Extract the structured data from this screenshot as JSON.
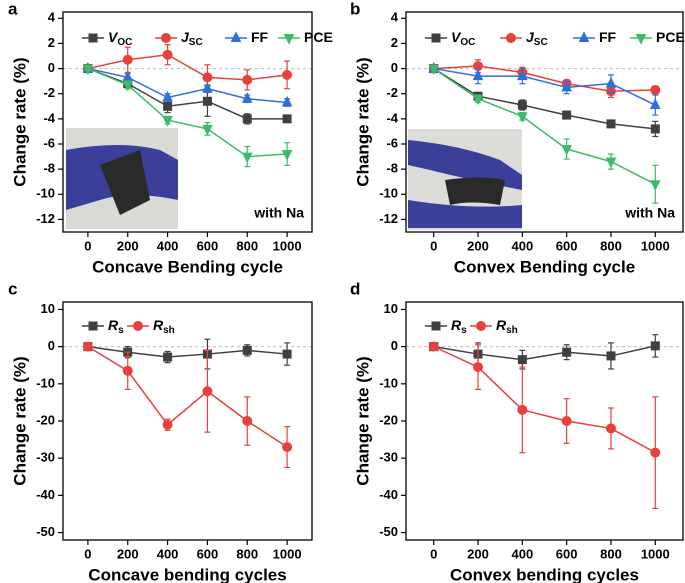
{
  "chart_data": [
    {
      "type": "line",
      "label": "a",
      "annotation": "with Na",
      "xlabel": "Concave Bending cycle",
      "ylabel": "Change rate (%)",
      "x": [
        0,
        200,
        400,
        600,
        800,
        1000
      ],
      "xlim": [
        -125,
        1125
      ],
      "xticks": [
        0,
        200,
        400,
        600,
        800,
        1000
      ],
      "ylim": [
        -13,
        4.5
      ],
      "yticks": [
        4,
        2,
        0,
        -2,
        -4,
        -6,
        -8,
        -10,
        -12
      ],
      "series": [
        {
          "name": "V",
          "sub": "OC",
          "color": "#404040",
          "marker": "square",
          "values": [
            0,
            -1.2,
            -3.0,
            -2.6,
            -4.0,
            -4.0
          ],
          "errors": [
            0,
            0.3,
            0.5,
            1.2,
            0.4,
            0.1
          ]
        },
        {
          "name": "J",
          "sub": "SC",
          "color": "#e8403a",
          "marker": "circle",
          "values": [
            0,
            0.7,
            1.1,
            -0.7,
            -0.9,
            -0.5
          ],
          "errors": [
            0,
            1.0,
            0.8,
            1.0,
            0.8,
            1.1
          ]
        },
        {
          "name": "FF",
          "color": "#2e6fd8",
          "marker": "triangle-up",
          "values": [
            0,
            -0.7,
            -2.3,
            -1.6,
            -2.4,
            -2.7
          ],
          "errors": [
            0,
            0.3,
            0.3,
            0.3,
            0.3,
            0.3
          ]
        },
        {
          "name": "PCE",
          "color": "#3dbb6a",
          "marker": "triangle-down",
          "values": [
            0,
            -1.3,
            -4.1,
            -4.8,
            -7.0,
            -6.8
          ],
          "errors": [
            0,
            0.3,
            0.3,
            0.5,
            0.8,
            0.9
          ]
        }
      ]
    },
    {
      "type": "line",
      "label": "b",
      "annotation": "with Na",
      "xlabel": "Convex Bending cycle",
      "ylabel": "Change rate (%)",
      "x": [
        0,
        200,
        400,
        600,
        800,
        1000
      ],
      "xlim": [
        -125,
        1125
      ],
      "xticks": [
        0,
        200,
        400,
        600,
        800,
        1000
      ],
      "ylim": [
        -13,
        4.5
      ],
      "yticks": [
        4,
        2,
        0,
        -2,
        -4,
        -6,
        -8,
        -10,
        -12
      ],
      "series": [
        {
          "name": "V",
          "sub": "OC",
          "color": "#404040",
          "marker": "square",
          "values": [
            0,
            -2.2,
            -2.9,
            -3.7,
            -4.4,
            -4.8
          ],
          "errors": [
            0,
            0.3,
            0.4,
            0.3,
            0.2,
            0.6
          ]
        },
        {
          "name": "J",
          "sub": "SC",
          "color": "#e8403a",
          "marker": "circle",
          "values": [
            0,
            0.2,
            -0.3,
            -1.2,
            -1.8,
            -1.7
          ],
          "errors": [
            0,
            0.5,
            0.4,
            0.3,
            0.5,
            0.3
          ]
        },
        {
          "name": "FF",
          "color": "#2e6fd8",
          "marker": "triangle-up",
          "values": [
            0,
            -0.6,
            -0.6,
            -1.5,
            -1.2,
            -2.9
          ],
          "errors": [
            0,
            0.6,
            0.6,
            0.5,
            0.7,
            0.8
          ]
        },
        {
          "name": "PCE",
          "color": "#3dbb6a",
          "marker": "triangle-down",
          "values": [
            0,
            -2.4,
            -3.8,
            -6.4,
            -7.4,
            -9.2
          ],
          "errors": [
            0,
            0.3,
            0.3,
            0.8,
            0.6,
            1.5
          ]
        }
      ]
    },
    {
      "type": "line",
      "label": "c",
      "xlabel": "Concave bending cycles",
      "ylabel": "Change rate (%)",
      "x": [
        0,
        200,
        400,
        600,
        800,
        1000
      ],
      "xlim": [
        -125,
        1125
      ],
      "xticks": [
        0,
        200,
        400,
        600,
        800,
        1000
      ],
      "ylim": [
        -52,
        12
      ],
      "yticks": [
        10,
        0,
        -10,
        -20,
        -30,
        -40,
        -50
      ],
      "series": [
        {
          "name": "R",
          "sub": "s",
          "color": "#404040",
          "marker": "square",
          "values": [
            0,
            -1.5,
            -2.8,
            -2.0,
            -1.0,
            -2.0
          ],
          "errors": [
            0,
            1.5,
            1.5,
            4,
            1.5,
            3
          ]
        },
        {
          "name": "R",
          "sub": "sh",
          "color": "#e8403a",
          "marker": "circle",
          "values": [
            0,
            -6.5,
            -21,
            -12,
            -20,
            -27
          ],
          "errors": [
            0,
            5,
            1.5,
            11,
            6.5,
            5.5
          ]
        }
      ]
    },
    {
      "type": "line",
      "label": "d",
      "xlabel": "Convex bending cycles",
      "ylabel": "Change rate (%)",
      "x": [
        0,
        200,
        400,
        600,
        800,
        1000
      ],
      "xlim": [
        -125,
        1125
      ],
      "xticks": [
        0,
        200,
        400,
        600,
        800,
        1000
      ],
      "ylim": [
        -52,
        12
      ],
      "yticks": [
        10,
        0,
        -10,
        -20,
        -30,
        -40,
        -50
      ],
      "series": [
        {
          "name": "R",
          "sub": "s",
          "color": "#404040",
          "marker": "square",
          "values": [
            0,
            -2,
            -3.5,
            -1.5,
            -2.5,
            0.2
          ],
          "errors": [
            0,
            3,
            2.5,
            2,
            3.5,
            3
          ]
        },
        {
          "name": "R",
          "sub": "sh",
          "color": "#e8403a",
          "marker": "circle",
          "values": [
            0,
            -5.5,
            -17,
            -20,
            -22,
            -28.5
          ],
          "errors": [
            0,
            6,
            11.5,
            6,
            5.5,
            15
          ]
        }
      ]
    }
  ]
}
